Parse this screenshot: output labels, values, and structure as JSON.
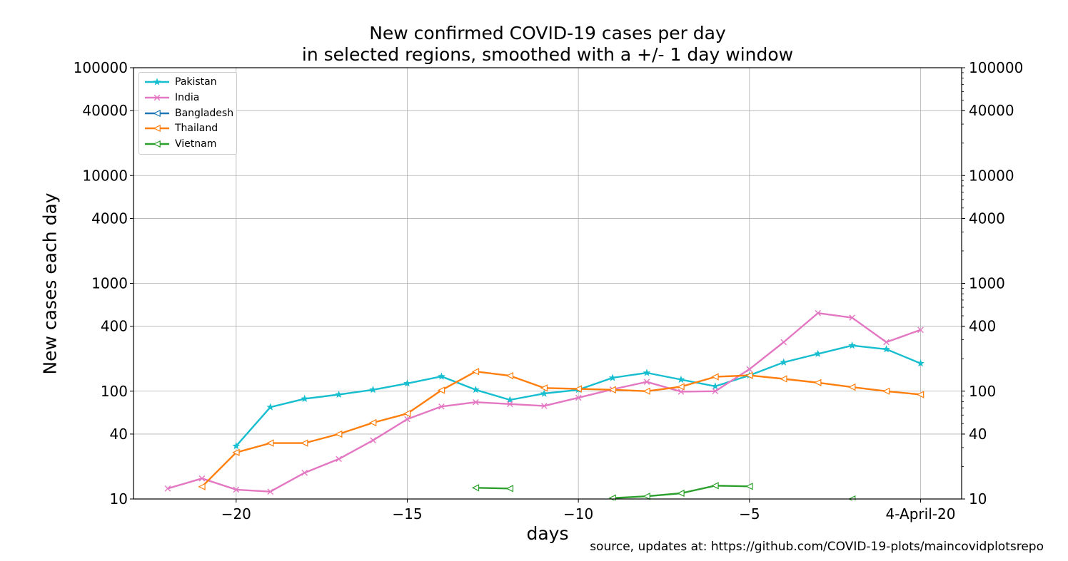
{
  "title_line1": "New confirmed COVID-19 cases per day",
  "title_line2": "in selected regions, smoothed with a +/- 1 day window",
  "source_text": "source, updates at: https://github.com/COVID-19-plots/maincovidplotsrepo",
  "chart_data": {
    "type": "line",
    "title": "New confirmed COVID-19 cases per day\nin selected regions, smoothed with a +/- 1 day window",
    "xlabel": "days",
    "ylabel": "New cases each day",
    "yscale": "log",
    "xlim": [
      -23,
      1.2
    ],
    "ylim": [
      10,
      100000
    ],
    "grid": true,
    "legend_position": "top-left",
    "x_tick_labels": [
      "−20",
      "−15",
      "−10",
      "−5",
      "4-April-20"
    ],
    "x_tick_values": [
      -20,
      -15,
      -10,
      -5,
      0
    ],
    "y_tick_labels": [
      "10",
      "40",
      "100",
      "400",
      "1000",
      "4000",
      "10000",
      "40000",
      "100000"
    ],
    "y_tick_values": [
      10,
      40,
      100,
      400,
      1000,
      4000,
      10000,
      40000,
      100000
    ],
    "series": [
      {
        "name": "Pakistan",
        "color": "#17becf",
        "marker": "star",
        "points": [
          [
            -20,
            31
          ],
          [
            -19,
            71
          ],
          [
            -18,
            85
          ],
          [
            -17,
            93
          ],
          [
            -16,
            103
          ],
          [
            -15,
            118
          ],
          [
            -14,
            137
          ],
          [
            -13,
            103
          ],
          [
            -12,
            83
          ],
          [
            -11,
            95
          ],
          [
            -10,
            103
          ],
          [
            -9,
            133
          ],
          [
            -8,
            148
          ],
          [
            -7,
            128
          ],
          [
            -6,
            111
          ],
          [
            -5,
            140
          ],
          [
            -4,
            185
          ],
          [
            -3,
            222
          ],
          [
            -2,
            265
          ],
          [
            -1,
            245
          ],
          [
            0,
            181
          ]
        ]
      },
      {
        "name": "India",
        "color": "#e377c2",
        "marker": "x",
        "points": [
          [
            -22,
            12.5
          ],
          [
            -21,
            15.5
          ],
          [
            -20,
            12.2
          ],
          [
            -19,
            11.7
          ],
          [
            -18,
            17.5
          ],
          [
            -17,
            23.5
          ],
          [
            -16,
            35
          ],
          [
            -15,
            55
          ],
          [
            -14,
            72
          ],
          [
            -13,
            79
          ],
          [
            -12,
            76
          ],
          [
            -11,
            73
          ],
          [
            -10,
            87
          ],
          [
            -9,
            104
          ],
          [
            -8,
            122
          ],
          [
            -7,
            99
          ],
          [
            -6,
            100
          ],
          [
            -5,
            160
          ],
          [
            -4,
            285
          ],
          [
            -3,
            530
          ],
          [
            -2,
            480
          ],
          [
            -1,
            285
          ],
          [
            0,
            370
          ]
        ]
      },
      {
        "name": "Bangladesh",
        "color": "#1f77b4",
        "marker": "triangle-left",
        "points": []
      },
      {
        "name": "Thailand",
        "color": "#ff7f0e",
        "marker": "triangle-left",
        "points": [
          [
            -21,
            13
          ],
          [
            -20,
            27
          ],
          [
            -19,
            33
          ],
          [
            -18,
            33
          ],
          [
            -17,
            40
          ],
          [
            -16,
            51
          ],
          [
            -15,
            62
          ],
          [
            -14,
            102
          ],
          [
            -13,
            152
          ],
          [
            -12,
            139
          ],
          [
            -11,
            107
          ],
          [
            -10,
            105
          ],
          [
            -9,
            103
          ],
          [
            -8,
            100
          ],
          [
            -7,
            110
          ],
          [
            -6,
            136
          ],
          [
            -5,
            140
          ],
          [
            -4,
            130
          ],
          [
            -3,
            120
          ],
          [
            -2,
            109
          ],
          [
            -1,
            100
          ],
          [
            0,
            93
          ]
        ]
      },
      {
        "name": "Vietnam",
        "color": "#2ca02c",
        "marker": "triangle-left",
        "points": [
          [
            -13,
            12.7
          ],
          [
            -12,
            12.5
          ],
          null,
          [
            -9,
            10.2
          ],
          [
            -8,
            10.6
          ],
          [
            -7,
            11.3
          ],
          [
            -6,
            13.3
          ],
          [
            -5,
            13.1
          ],
          null,
          [
            -2,
            10
          ]
        ]
      }
    ]
  }
}
